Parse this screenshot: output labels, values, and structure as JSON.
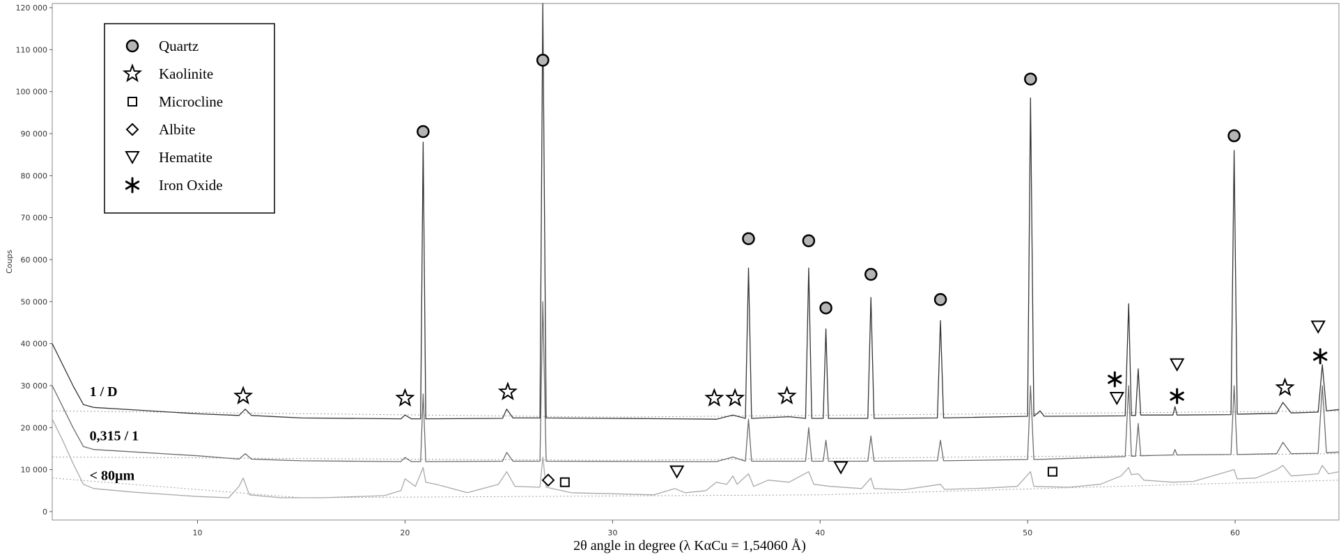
{
  "chart_data": {
    "type": "line",
    "xlabel": "2θ angle in degree (λ KαCu = 1,54060 Å)",
    "ylabel": "Coups",
    "xlim": [
      3,
      65
    ],
    "ylim": [
      -2000,
      121000
    ],
    "x_ticks": [
      10,
      20,
      30,
      40,
      50,
      60
    ],
    "x_tick_labels": [
      "10",
      "20",
      "30",
      "40",
      "50",
      "60"
    ],
    "y_ticks": [
      0,
      10000,
      20000,
      30000,
      40000,
      50000,
      60000,
      70000,
      80000,
      90000,
      100000,
      110000,
      120000
    ],
    "y_tick_labels": [
      "0",
      "10 000",
      "20 000",
      "30 000",
      "40 000",
      "50 000",
      "60 000",
      "70 000",
      "80 000",
      "90 000",
      "100 000",
      "110 000",
      "120 000"
    ],
    "grid": false,
    "legend_position": "top-left",
    "legend": [
      {
        "symbol": "circle",
        "label": "Quartz"
      },
      {
        "symbol": "star",
        "label": "Kaolinite"
      },
      {
        "symbol": "square",
        "label": "Microcline"
      },
      {
        "symbol": "diamond",
        "label": "Albite"
      },
      {
        "symbol": "triangle-down",
        "label": "Hematite"
      },
      {
        "symbol": "asterisk",
        "label": "Iron Oxide"
      }
    ],
    "series": [
      {
        "name": "1 / D",
        "color": "#333333",
        "points": [
          [
            3,
            40000
          ],
          [
            3.5,
            35000
          ],
          [
            4,
            30000
          ],
          [
            4.5,
            25500
          ],
          [
            5,
            24800
          ],
          [
            7,
            24200
          ],
          [
            10,
            23300
          ],
          [
            12,
            22900
          ],
          [
            12.3,
            24400
          ],
          [
            12.6,
            22900
          ],
          [
            15,
            22300
          ],
          [
            19.8,
            22100
          ],
          [
            20,
            23000
          ],
          [
            20.3,
            22100
          ],
          [
            20.75,
            22100
          ],
          [
            20.87,
            88000
          ],
          [
            21,
            22100
          ],
          [
            24.7,
            22200
          ],
          [
            24.9,
            24400
          ],
          [
            25.2,
            22300
          ],
          [
            26.5,
            22300
          ],
          [
            26.64,
            121000
          ],
          [
            26.8,
            22300
          ],
          [
            33,
            22100
          ],
          [
            35,
            22000
          ],
          [
            35.8,
            23000
          ],
          [
            36.4,
            22200
          ],
          [
            36.55,
            58000
          ],
          [
            36.7,
            22200
          ],
          [
            38.5,
            22600
          ],
          [
            39.3,
            22200
          ],
          [
            39.45,
            58000
          ],
          [
            39.6,
            22200
          ],
          [
            40.15,
            22200
          ],
          [
            40.28,
            43500
          ],
          [
            40.4,
            22200
          ],
          [
            42.3,
            22200
          ],
          [
            42.45,
            51000
          ],
          [
            42.6,
            22200
          ],
          [
            45.65,
            22300
          ],
          [
            45.8,
            45500
          ],
          [
            45.95,
            22300
          ],
          [
            50,
            22700
          ],
          [
            50.14,
            98500
          ],
          [
            50.3,
            22700
          ],
          [
            50.6,
            24000
          ],
          [
            50.8,
            22700
          ],
          [
            54.7,
            22800
          ],
          [
            54.87,
            49500
          ],
          [
            55,
            22900
          ],
          [
            55.2,
            22900
          ],
          [
            55.33,
            34000
          ],
          [
            55.45,
            23000
          ],
          [
            57,
            23000
          ],
          [
            57.1,
            25000
          ],
          [
            57.2,
            23000
          ],
          [
            59.8,
            23100
          ],
          [
            59.95,
            86000
          ],
          [
            60.1,
            23200
          ],
          [
            62,
            23400
          ],
          [
            62.3,
            26000
          ],
          [
            62.7,
            23500
          ],
          [
            64,
            23700
          ],
          [
            64.2,
            35000
          ],
          [
            64.4,
            24000
          ],
          [
            65,
            24300
          ]
        ]
      },
      {
        "name": "0,315 / 1",
        "color": "#6a6a6a",
        "points": [
          [
            3,
            30000
          ],
          [
            3.5,
            25000
          ],
          [
            4,
            20000
          ],
          [
            4.5,
            15500
          ],
          [
            5,
            14800
          ],
          [
            7,
            14200
          ],
          [
            10,
            13300
          ],
          [
            12,
            12500
          ],
          [
            12.3,
            13800
          ],
          [
            12.6,
            12500
          ],
          [
            15,
            12100
          ],
          [
            19.8,
            11900
          ],
          [
            20,
            12900
          ],
          [
            20.3,
            11900
          ],
          [
            20.75,
            11900
          ],
          [
            20.87,
            28000
          ],
          [
            21,
            11900
          ],
          [
            24.7,
            12000
          ],
          [
            24.9,
            14100
          ],
          [
            25.2,
            12000
          ],
          [
            26.5,
            12000
          ],
          [
            26.64,
            50000
          ],
          [
            26.8,
            12000
          ],
          [
            33,
            11900
          ],
          [
            35,
            11900
          ],
          [
            35.8,
            13000
          ],
          [
            36.4,
            12000
          ],
          [
            36.55,
            22000
          ],
          [
            36.7,
            12000
          ],
          [
            39.3,
            12000
          ],
          [
            39.45,
            20000
          ],
          [
            39.6,
            12000
          ],
          [
            40.15,
            12000
          ],
          [
            40.28,
            17000
          ],
          [
            40.4,
            12000
          ],
          [
            42.3,
            12000
          ],
          [
            42.45,
            18000
          ],
          [
            42.6,
            12000
          ],
          [
            45.65,
            12100
          ],
          [
            45.8,
            17000
          ],
          [
            45.95,
            12100
          ],
          [
            50,
            12400
          ],
          [
            50.14,
            30000
          ],
          [
            50.3,
            12400
          ],
          [
            54.7,
            13100
          ],
          [
            54.87,
            30000
          ],
          [
            55,
            13200
          ],
          [
            55.2,
            13200
          ],
          [
            55.33,
            21000
          ],
          [
            55.45,
            13300
          ],
          [
            57,
            13500
          ],
          [
            57.1,
            14800
          ],
          [
            57.2,
            13500
          ],
          [
            59.8,
            13600
          ],
          [
            59.95,
            30000
          ],
          [
            60.1,
            13600
          ],
          [
            62,
            13800
          ],
          [
            62.3,
            16500
          ],
          [
            62.7,
            13800
          ],
          [
            64,
            13900
          ],
          [
            64.2,
            30000
          ],
          [
            64.4,
            14000
          ],
          [
            65,
            14200
          ]
        ]
      },
      {
        "name": "< 80µm",
        "color": "#a8a8a8",
        "points": [
          [
            3,
            22000
          ],
          [
            3.5,
            17000
          ],
          [
            4,
            11500
          ],
          [
            4.5,
            6500
          ],
          [
            5,
            5500
          ],
          [
            7,
            4600
          ],
          [
            10,
            3600
          ],
          [
            11.5,
            3300
          ],
          [
            12,
            6000
          ],
          [
            12.2,
            8000
          ],
          [
            12.5,
            4000
          ],
          [
            14,
            3300
          ],
          [
            16,
            3300
          ],
          [
            19,
            3800
          ],
          [
            19.8,
            5000
          ],
          [
            20,
            7800
          ],
          [
            20.5,
            6000
          ],
          [
            20.87,
            10500
          ],
          [
            21,
            7000
          ],
          [
            21.5,
            6500
          ],
          [
            23,
            4500
          ],
          [
            24.5,
            6500
          ],
          [
            24.9,
            9500
          ],
          [
            25.3,
            6000
          ],
          [
            26.5,
            5800
          ],
          [
            26.64,
            13000
          ],
          [
            26.8,
            5800
          ],
          [
            28,
            4500
          ],
          [
            32,
            4000
          ],
          [
            33,
            5500
          ],
          [
            33.5,
            4500
          ],
          [
            34.5,
            5000
          ],
          [
            35,
            7000
          ],
          [
            35.5,
            6500
          ],
          [
            35.8,
            8500
          ],
          [
            36,
            6500
          ],
          [
            36.55,
            9000
          ],
          [
            36.8,
            6000
          ],
          [
            37.5,
            7500
          ],
          [
            38.5,
            7000
          ],
          [
            39.45,
            9500
          ],
          [
            39.7,
            6500
          ],
          [
            40.5,
            6000
          ],
          [
            42,
            5500
          ],
          [
            42.45,
            8000
          ],
          [
            42.6,
            5500
          ],
          [
            44,
            5200
          ],
          [
            45.8,
            6500
          ],
          [
            46,
            5300
          ],
          [
            48,
            5600
          ],
          [
            49.5,
            6000
          ],
          [
            50.14,
            9500
          ],
          [
            50.3,
            6000
          ],
          [
            52,
            5800
          ],
          [
            53.5,
            6500
          ],
          [
            54.5,
            8500
          ],
          [
            54.87,
            10500
          ],
          [
            55,
            8800
          ],
          [
            55.33,
            9000
          ],
          [
            55.6,
            7500
          ],
          [
            57,
            7000
          ],
          [
            58,
            7200
          ],
          [
            59.95,
            10000
          ],
          [
            60.1,
            7800
          ],
          [
            61,
            8000
          ],
          [
            62,
            10000
          ],
          [
            62.3,
            11000
          ],
          [
            62.7,
            8500
          ],
          [
            64,
            9000
          ],
          [
            64.2,
            11000
          ],
          [
            64.5,
            9000
          ],
          [
            65,
            9500
          ]
        ]
      }
    ],
    "baselines": [
      {
        "points": [
          [
            3,
            24000
          ],
          [
            30,
            22500
          ],
          [
            65,
            24000
          ]
        ]
      },
      {
        "points": [
          [
            3,
            13000
          ],
          [
            30,
            12200
          ],
          [
            65,
            13800
          ]
        ]
      },
      {
        "points": [
          [
            3,
            8000
          ],
          [
            15,
            3300
          ],
          [
            40,
            4000
          ],
          [
            65,
            7500
          ]
        ]
      }
    ],
    "series_labels": [
      {
        "text": "1 / D",
        "x": 4.8,
        "y": 27500
      },
      {
        "text": "0,315 / 1",
        "x": 4.8,
        "y": 17000
      },
      {
        "text": "< 80µm",
        "x": 4.8,
        "y": 7500
      }
    ],
    "annotations": [
      {
        "symbol": "circle",
        "x": 20.87,
        "y": 90500
      },
      {
        "symbol": "circle",
        "x": 26.64,
        "y": 107500
      },
      {
        "symbol": "circle",
        "x": 36.55,
        "y": 65000
      },
      {
        "symbol": "circle",
        "x": 39.45,
        "y": 64500
      },
      {
        "symbol": "circle",
        "x": 40.28,
        "y": 48500
      },
      {
        "symbol": "circle",
        "x": 42.45,
        "y": 56500
      },
      {
        "symbol": "circle",
        "x": 45.8,
        "y": 50500
      },
      {
        "symbol": "circle",
        "x": 50.14,
        "y": 103000
      },
      {
        "symbol": "circle",
        "x": 59.95,
        "y": 89500
      },
      {
        "symbol": "star",
        "x": 12.2,
        "y": 27500
      },
      {
        "symbol": "star",
        "x": 20.0,
        "y": 27000
      },
      {
        "symbol": "star",
        "x": 24.95,
        "y": 28500
      },
      {
        "symbol": "star",
        "x": 34.9,
        "y": 27000
      },
      {
        "symbol": "star",
        "x": 35.9,
        "y": 27000
      },
      {
        "symbol": "star",
        "x": 38.4,
        "y": 27500
      },
      {
        "symbol": "star",
        "x": 62.4,
        "y": 29500
      },
      {
        "symbol": "diamond",
        "x": 26.9,
        "y": 7500
      },
      {
        "symbol": "square",
        "x": 27.7,
        "y": 7000
      },
      {
        "symbol": "square",
        "x": 51.2,
        "y": 9500
      },
      {
        "symbol": "triangle-down",
        "x": 33.1,
        "y": 9500
      },
      {
        "symbol": "triangle-down",
        "x": 41.0,
        "y": 10500
      },
      {
        "symbol": "triangle-down",
        "x": 54.3,
        "y": 27000
      },
      {
        "symbol": "triangle-down",
        "x": 57.2,
        "y": 35000
      },
      {
        "symbol": "triangle-down",
        "x": 64.0,
        "y": 44000
      },
      {
        "symbol": "asterisk",
        "x": 54.2,
        "y": 31500
      },
      {
        "symbol": "asterisk",
        "x": 57.2,
        "y": 27500
      },
      {
        "symbol": "asterisk",
        "x": 64.1,
        "y": 37000
      }
    ]
  }
}
